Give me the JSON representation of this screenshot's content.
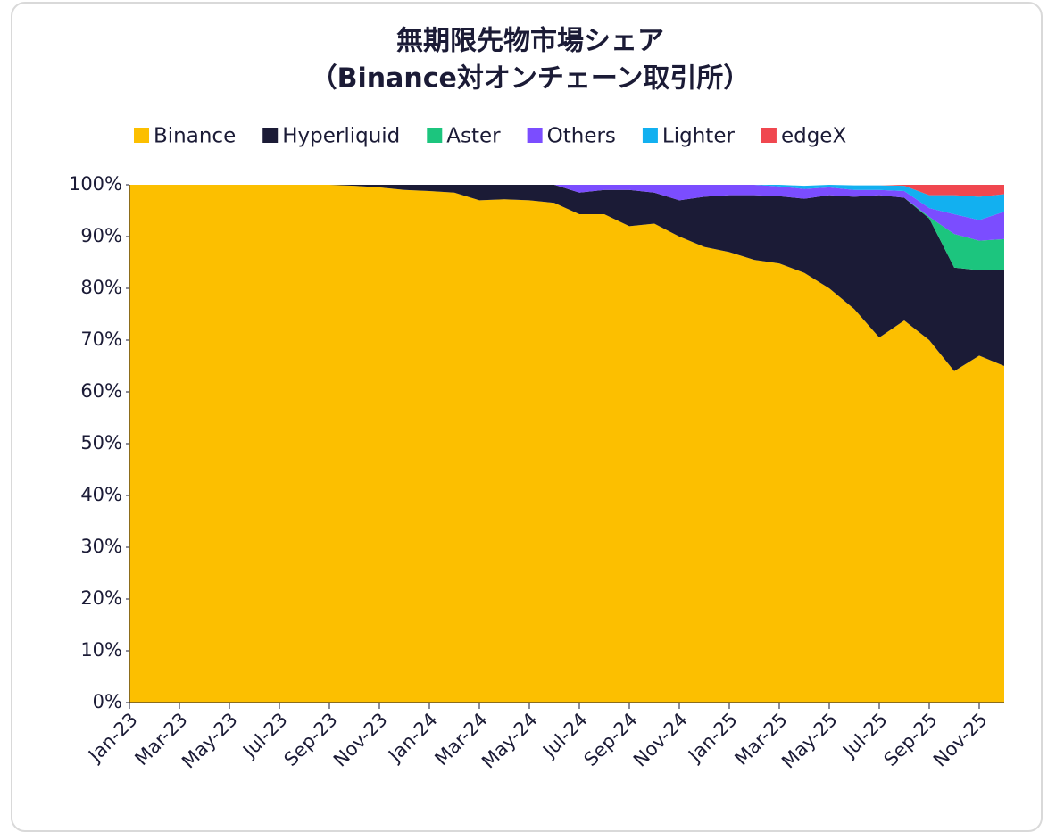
{
  "chart_data": {
    "type": "stacked_area",
    "title": "無期限先物市場シェア",
    "subtitle": "（Binance対オンチェーン取引所）",
    "categories": [
      "Jan-23",
      null,
      "Mar-23",
      null,
      "May-23",
      null,
      "Jul-23",
      null,
      "Sep-23",
      null,
      "Nov-23",
      null,
      "Jan-24",
      null,
      "Mar-24",
      null,
      "May-24",
      null,
      "Jul-24",
      null,
      "Sep-24",
      null,
      "Nov-24",
      null,
      "Jan-25",
      null,
      "Mar-25",
      null,
      "May-25",
      null,
      "Jul-25",
      null,
      "Sep-25",
      null,
      "Nov-25",
      null
    ],
    "series": [
      {
        "name": "Binance",
        "color": "#fcbf00",
        "values": [
          100,
          100,
          100,
          100,
          100,
          100,
          100,
          100,
          100,
          99.8,
          99.5,
          99,
          98.8,
          98.5,
          97,
          97.2,
          97,
          96.5,
          94.3,
          94.3,
          92,
          92.5,
          90,
          88,
          87,
          85.5,
          84.8,
          83,
          80,
          76,
          70.5,
          73.8,
          70,
          64,
          67,
          65
        ]
      },
      {
        "name": "Hyperliquid",
        "color": "#1b1b36",
        "values": [
          0,
          0,
          0,
          0,
          0,
          0,
          0,
          0,
          0,
          0.2,
          0.5,
          1,
          1.2,
          1.5,
          3,
          2.8,
          3,
          3.5,
          4.2,
          4.7,
          7,
          6,
          7,
          9.7,
          11,
          12.5,
          13,
          14.3,
          18,
          21.7,
          27.5,
          23.7,
          23.5,
          20,
          16.5,
          18.5
        ]
      },
      {
        "name": "Aster",
        "color": "#1cc57e",
        "values": [
          0,
          0,
          0,
          0,
          0,
          0,
          0,
          0,
          0,
          0,
          0,
          0,
          0,
          0,
          0,
          0,
          0,
          0,
          0,
          0,
          0,
          0,
          0,
          0,
          0,
          0,
          0,
          0,
          0,
          0,
          0,
          0,
          0.3,
          6.5,
          5.7,
          6
        ]
      },
      {
        "name": "Others",
        "color": "#7b4dff",
        "values": [
          0,
          0,
          0,
          0,
          0,
          0,
          0,
          0,
          0,
          0,
          0,
          0,
          0,
          0,
          0,
          0,
          0,
          0,
          1.5,
          1,
          1,
          1.5,
          3,
          2.3,
          2,
          2,
          1.9,
          1.9,
          1.5,
          1.3,
          1,
          1.3,
          1.7,
          3.8,
          4,
          5.3
        ]
      },
      {
        "name": "Lighter",
        "color": "#12b0f0",
        "values": [
          0,
          0,
          0,
          0,
          0,
          0,
          0,
          0,
          0,
          0,
          0,
          0,
          0,
          0,
          0,
          0,
          0,
          0,
          0,
          0,
          0,
          0,
          0,
          0,
          0,
          0,
          0.3,
          0.6,
          0.5,
          0.9,
          0.9,
          1,
          2.5,
          3.7,
          4.5,
          3.4
        ]
      },
      {
        "name": "edgeX",
        "color": "#f0474f",
        "values": [
          0,
          0,
          0,
          0,
          0,
          0,
          0,
          0,
          0,
          0,
          0,
          0,
          0,
          0,
          0,
          0,
          0,
          0,
          0,
          0,
          0,
          0,
          0,
          0,
          0,
          0,
          0,
          0,
          0,
          0,
          0,
          0.2,
          2,
          2,
          2.3,
          1.8
        ]
      }
    ],
    "ylim": [
      0,
      100
    ],
    "yticks": [
      {
        "value": 0,
        "label": "0%"
      },
      {
        "value": 10,
        "label": "10%"
      },
      {
        "value": 20,
        "label": "20%"
      },
      {
        "value": 30,
        "label": "30%"
      },
      {
        "value": 40,
        "label": "40%"
      },
      {
        "value": 50,
        "label": "50%"
      },
      {
        "value": 60,
        "label": "60%"
      },
      {
        "value": 70,
        "label": "70%"
      },
      {
        "value": 80,
        "label": "80%"
      },
      {
        "value": 90,
        "label": "90%"
      },
      {
        "value": 100,
        "label": "100%"
      }
    ],
    "legend": "top",
    "grid": false
  }
}
